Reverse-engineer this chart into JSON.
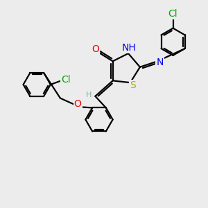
{
  "background_color": "#ececec",
  "atom_colors": {
    "C": "#000000",
    "H": "#7aadad",
    "N": "#0000ee",
    "O": "#ee0000",
    "S": "#bbaa00",
    "Cl": "#00aa00"
  },
  "bond_color": "#000000",
  "bond_width": 1.6,
  "font_size_atom": 10,
  "font_size_small": 8,
  "xlim": [
    -2.5,
    8.0
  ],
  "ylim": [
    -3.5,
    5.5
  ]
}
